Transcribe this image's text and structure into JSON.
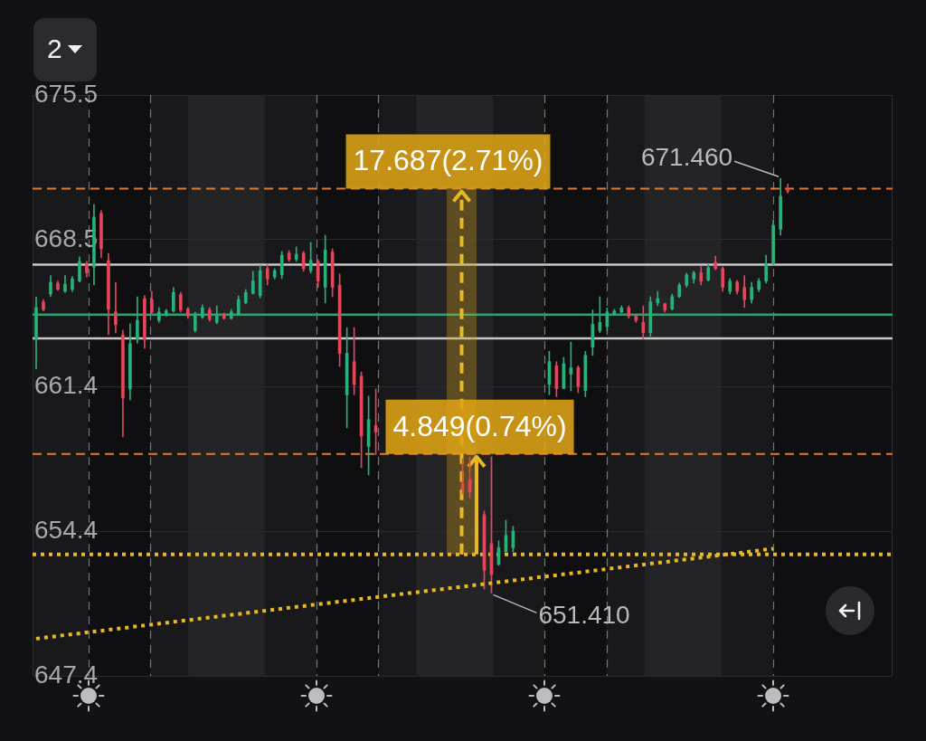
{
  "chart_data": {
    "type": "candlestick",
    "categories": [
      null,
      null,
      null,
      null,
      null,
      null,
      null,
      null,
      null,
      null,
      null,
      null,
      null,
      null,
      null,
      null,
      null,
      null,
      null,
      null,
      null,
      null,
      null,
      null,
      null,
      null,
      null,
      null,
      null,
      null,
      null,
      null,
      null,
      null,
      null,
      null,
      null,
      null,
      null,
      null,
      null,
      null,
      null,
      null,
      null,
      null,
      null,
      null,
      null,
      null,
      null,
      null,
      null,
      null,
      null,
      null,
      null,
      null,
      null,
      null,
      null,
      null,
      null,
      null,
      null,
      null,
      null,
      null,
      null,
      null,
      null,
      null,
      null,
      null,
      null,
      null,
      null,
      null,
      null,
      null,
      null,
      null,
      null,
      null,
      null,
      null,
      null,
      null,
      null,
      null,
      null,
      null,
      null,
      null,
      null,
      null,
      null,
      null,
      null,
      null,
      null,
      null,
      null,
      null,
      null,
      null,
      null,
      null,
      null,
      null,
      null,
      null,
      null,
      null,
      null,
      null,
      null,
      null,
      null
    ],
    "series": [
      {
        "ohlc": [
          [
            663.68,
            665.74,
            662.24,
            665.22
          ],
          [
            665.48,
            665.6,
            665.05,
            665.13
          ],
          [
            665.87,
            666.76,
            665.74,
            666.44
          ],
          [
            666.4,
            666.5,
            666.05,
            666.1
          ],
          [
            666.0,
            666.76,
            665.95,
            666.35
          ],
          [
            666.1,
            666.72,
            666.0,
            666.6
          ],
          [
            666.5,
            667.67,
            666.45,
            667.45
          ],
          [
            667.3,
            667.45,
            666.7,
            666.9
          ],
          [
            667.18,
            670.21,
            666.31,
            669.59
          ],
          [
            669.77,
            669.9,
            667.62,
            668.06
          ],
          [
            667.49,
            667.84,
            663.9,
            665.13
          ],
          [
            665.0,
            666.44,
            663.99,
            664.4
          ],
          [
            663.9,
            664.12,
            658.96,
            660.84
          ],
          [
            661.28,
            664.43,
            660.75,
            663.47
          ],
          [
            663.7,
            665.74,
            663.5,
            664.6
          ],
          [
            665.65,
            665.79,
            663.25,
            663.68
          ],
          [
            665.6,
            666.0,
            664.87,
            665.0
          ],
          [
            664.6,
            665.22,
            664.5,
            665.0
          ],
          [
            664.85,
            665.13,
            664.8,
            665.05
          ],
          [
            665.05,
            666.18,
            665.0,
            665.95
          ],
          [
            665.85,
            665.95,
            665.0,
            665.1
          ],
          [
            665.15,
            665.22,
            664.69,
            664.8
          ],
          [
            664.1,
            665.0,
            664.03,
            664.9
          ],
          [
            664.75,
            665.35,
            664.69,
            665.2
          ],
          [
            665.1,
            665.22,
            664.56,
            664.65
          ],
          [
            664.5,
            665.3,
            664.43,
            664.8
          ],
          [
            664.9,
            664.95,
            664.65,
            664.7
          ],
          [
            664.7,
            665.13,
            664.65,
            665.0
          ],
          [
            664.9,
            665.78,
            664.87,
            665.6
          ],
          [
            665.45,
            666.09,
            665.4,
            665.95
          ],
          [
            665.9,
            666.97,
            665.87,
            666.5
          ],
          [
            665.8,
            667.27,
            665.69,
            667.0
          ],
          [
            667.1,
            667.32,
            666.31,
            666.6
          ],
          [
            666.7,
            667.1,
            666.6,
            667.0
          ],
          [
            666.8,
            667.93,
            666.62,
            667.75
          ],
          [
            667.85,
            667.97,
            667.45,
            667.55
          ],
          [
            667.55,
            668.15,
            667.45,
            667.8
          ],
          [
            667.85,
            667.93,
            666.97,
            667.1
          ],
          [
            667.0,
            668.37,
            666.88,
            667.5
          ],
          [
            667.45,
            667.53,
            666.18,
            666.5
          ],
          [
            666.2,
            668.72,
            665.44,
            668.0
          ],
          [
            667.9,
            668.06,
            665.74,
            666.2
          ],
          [
            666.3,
            666.84,
            662.37,
            663.0
          ],
          [
            661.0,
            664.25,
            659.4,
            663.0
          ],
          [
            662.6,
            664.25,
            661.0,
            661.5
          ],
          [
            661.9,
            662.1,
            657.47,
            659.0
          ],
          [
            658.5,
            660.93,
            657.12,
            659.8
          ],
          [
            659.5,
            661.28,
            658.1,
            659.2
          ],
          null,
          null,
          null,
          null,
          null,
          null,
          null,
          null,
          null,
          null,
          null,
          [
            656.7,
            657.9,
            656.2,
            656.4
          ],
          [
            656.9,
            657.99,
            656.0,
            656.3
          ],
          null,
          [
            655.2,
            655.37,
            651.6,
            652.5
          ],
          [
            653.8,
            657.99,
            651.41,
            652.3
          ],
          [
            652.8,
            653.93,
            652.74,
            653.6
          ],
          [
            653.4,
            654.93,
            653.4,
            654.2
          ],
          [
            653.6,
            654.63,
            653.4,
            654.4
          ],
          null,
          null,
          null,
          null,
          [
            661.5,
            663.1,
            661.0,
            662.6
          ],
          [
            662.4,
            662.6,
            660.9,
            661.3
          ],
          [
            661.3,
            662.81,
            661.3,
            662.5
          ],
          [
            662.0,
            663.55,
            661.19,
            662.3
          ],
          [
            662.3,
            662.4,
            661.1,
            661.4
          ],
          [
            661.2,
            663.1,
            660.9,
            662.9
          ],
          [
            663.3,
            665.1,
            662.9,
            664.4
          ],
          [
            664.1,
            665.74,
            664.0,
            664.5
          ],
          [
            664.3,
            665.2,
            664.1,
            665.0
          ],
          [
            664.9,
            665.13,
            664.85,
            665.05
          ],
          [
            665.0,
            665.3,
            664.95,
            665.2
          ],
          [
            665.2,
            665.3,
            664.7,
            664.8
          ],
          [
            664.8,
            664.87,
            664.5,
            664.6
          ],
          [
            664.5,
            665.3,
            663.68,
            664.0
          ],
          [
            664.0,
            665.74,
            663.82,
            665.5
          ],
          [
            665.45,
            666.0,
            665.3,
            665.65
          ],
          [
            665.4,
            665.44,
            665.0,
            665.1
          ],
          [
            665.15,
            665.87,
            665.1,
            665.75
          ],
          [
            665.75,
            666.4,
            665.7,
            666.3
          ],
          [
            666.3,
            666.88,
            666.2,
            666.8
          ],
          [
            666.6,
            666.97,
            666.4,
            666.9
          ],
          [
            666.9,
            667.2,
            666.31,
            666.5
          ],
          [
            666.55,
            667.32,
            666.5,
            667.15
          ],
          [
            667.4,
            667.7,
            667.05,
            667.1
          ],
          [
            667.1,
            667.18,
            666.0,
            666.2
          ],
          [
            666.0,
            666.62,
            665.87,
            666.5
          ],
          [
            666.45,
            666.53,
            665.87,
            666.0
          ],
          [
            666.2,
            666.76,
            665.22,
            665.6
          ],
          [
            665.6,
            666.44,
            665.44,
            666.2
          ],
          [
            666.1,
            666.62,
            666.0,
            666.5
          ],
          [
            666.5,
            667.75,
            666.4,
            667.3
          ],
          [
            667.32,
            669.46,
            667.3,
            669.2
          ],
          [
            669.0,
            671.46,
            668.72,
            670.6
          ],
          [
            670.9,
            671.2,
            670.75,
            670.85
          ],
          null,
          null,
          null,
          null,
          null,
          null,
          null,
          null,
          null,
          null,
          null,
          null,
          null,
          null
        ],
        "colors": [
          "#2bb07a",
          "#e2475a",
          "#2bb07a",
          "#e2475a",
          "#2bb07a",
          "#2bb07a",
          "#2bb07a",
          "#e2475a",
          "#2bb07a",
          "#e2475a",
          "#e2475a",
          "#e2475a",
          "#e2475a",
          "#2bb07a",
          "#2bb07a",
          "#e2475a",
          "#e2475a",
          "#2bb07a",
          "#2bb07a",
          "#2bb07a",
          "#e2475a",
          "#e2475a",
          "#2bb07a",
          "#2bb07a",
          "#e2475a",
          "#2bb07a",
          "#e2475a",
          "#2bb07a",
          "#2bb07a",
          "#2bb07a",
          "#2bb07a",
          "#2bb07a",
          "#e2475a",
          "#2bb07a",
          "#2bb07a",
          "#e2475a",
          "#2bb07a",
          "#e2475a",
          "#2bb07a",
          "#e2475a",
          "#2bb07a",
          "#e2475a",
          "#e2475a",
          "#2bb07a",
          "#e2475a",
          "#e2475a",
          "#2bb07a",
          "#e2475a",
          null,
          null,
          null,
          null,
          null,
          null,
          null,
          null,
          null,
          null,
          null,
          "#e2475a",
          "#e2475a",
          null,
          "#e2475a",
          "#e2475a",
          "#2bb07a",
          "#2bb07a",
          "#2bb07a",
          null,
          null,
          null,
          null,
          "#2bb07a",
          "#e2475a",
          "#2bb07a",
          "#2bb07a",
          "#e2475a",
          "#2bb07a",
          "#2bb07a",
          "#2bb07a",
          "#2bb07a",
          "#2bb07a",
          "#2bb07a",
          "#e2475a",
          "#e2475a",
          "#e2475a",
          "#2bb07a",
          "#2bb07a",
          "#e2475a",
          "#2bb07a",
          "#2bb07a",
          "#2bb07a",
          "#2bb07a",
          "#e2475a",
          "#2bb07a",
          "#e2475a",
          "#e2475a",
          "#2bb07a",
          "#e2475a",
          "#e2475a",
          "#2bb07a",
          "#2bb07a",
          "#2bb07a",
          "#2bb07a",
          "#2bb07a",
          "#e2475a",
          null,
          null,
          null,
          null,
          null,
          null,
          null,
          null,
          null,
          null,
          null,
          null,
          null,
          null
        ]
      },
      {
        "type": "line",
        "color": "#e8b923",
        "line_style": "dotted",
        "values": [
          649.2,
          null,
          null,
          null,
          null,
          null,
          null,
          null,
          null,
          null,
          null,
          null,
          null,
          null,
          null,
          null,
          null,
          null,
          null,
          null,
          null,
          null,
          null,
          null,
          null,
          null,
          null,
          null,
          null,
          null,
          null,
          null,
          null,
          null,
          null,
          null,
          null,
          null,
          null,
          null,
          null,
          null,
          null,
          null,
          null,
          null,
          null,
          null,
          null,
          null,
          null,
          null,
          null,
          null,
          null,
          null,
          null,
          null,
          null,
          null,
          null,
          null,
          null,
          null,
          null,
          null,
          null,
          null,
          null,
          null,
          null,
          null,
          null,
          null,
          null,
          null,
          null,
          null,
          null,
          null,
          null,
          null,
          null,
          null,
          null,
          null,
          null,
          null,
          null,
          null,
          null,
          null,
          null,
          null,
          null,
          null,
          null,
          null,
          null,
          null,
          null,
          null,
          653.55,
          null,
          null,
          null,
          null,
          null,
          null,
          null,
          null,
          null,
          null,
          null,
          null,
          null,
          null,
          null,
          null
        ]
      }
    ],
    "ylim": [
      647.4,
      675.5
    ],
    "yticks": [
      647.4,
      654.4,
      661.4,
      668.5,
      675.5
    ],
    "grid": "y",
    "tick_labels": "y",
    "ref_lines": [
      {
        "axis": "y",
        "value": 670.97,
        "color": "#e8772e",
        "line_style": "dashed"
      },
      {
        "axis": "y",
        "value": 667.29,
        "color": "#c8c8ca",
        "line_style": "solid"
      },
      {
        "axis": "y",
        "value": 664.88,
        "color": "#2e9e75",
        "line_style": "solid"
      },
      {
        "axis": "y",
        "value": 663.73,
        "color": "#c8c8ca",
        "line_style": "solid"
      },
      {
        "axis": "y",
        "value": 658.13,
        "color": "#e8772e",
        "line_style": "dashed"
      },
      {
        "axis": "y",
        "value": 653.28,
        "color": "#e8b923",
        "line_style": "dotted"
      }
    ],
    "annotations": [
      "2",
      {
        "text": "17.687(2.71%)",
        "y": 670.97
      },
      {
        "text": "4.849(0.74%)",
        "y": 658.13
      },
      "671.460",
      "651.410"
    ]
  }
}
